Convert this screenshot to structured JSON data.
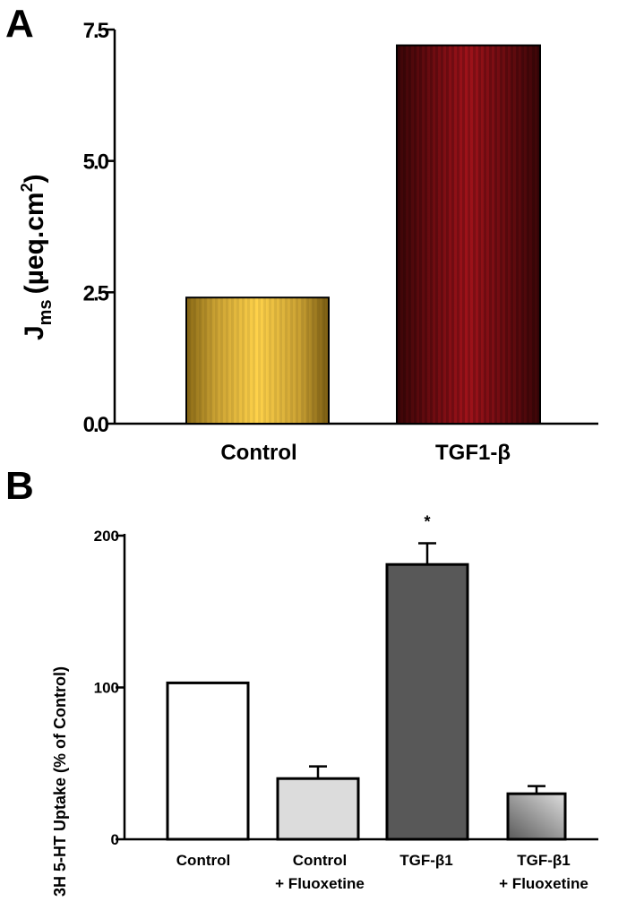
{
  "chart_data": [
    {
      "panel": "A",
      "type": "bar",
      "title": "",
      "xlabel": "",
      "ylabel_main": "J",
      "ylabel_sub": "ms",
      "ylabel_unit": "(µeq.cm",
      "ylabel_sup": "2",
      "ylabel_close": ")",
      "ylim": [
        0,
        7.5
      ],
      "ticks": [
        {
          "value": 0.0,
          "label": "0.0"
        },
        {
          "value": 2.5,
          "label": "2.5"
        },
        {
          "value": 5.0,
          "label": "5.0"
        },
        {
          "value": 7.5,
          "label": "7.5"
        }
      ],
      "categories": [
        "Control",
        "TGF1-β"
      ],
      "values": [
        2.4,
        7.2
      ],
      "colors": [
        "#f0c040",
        "#8a0f14"
      ]
    },
    {
      "panel": "B",
      "type": "bar",
      "title": "",
      "xlabel": "",
      "ylabel": "3H 5-HT Uptake (% of Control)",
      "ylim": [
        0,
        200
      ],
      "ticks": [
        {
          "value": 0,
          "label": "0"
        },
        {
          "value": 100,
          "label": "100"
        },
        {
          "value": 200,
          "label": "200"
        }
      ],
      "categories": [
        {
          "line1": "Control",
          "line2": ""
        },
        {
          "line1": "Control",
          "line2": "+ Fluoxetine"
        },
        {
          "line1": "TGF-β1",
          "line2": ""
        },
        {
          "line1": "TGF-β1",
          "line2": "+ Fluoxetine"
        }
      ],
      "values": [
        103,
        40,
        181,
        30
      ],
      "errors": [
        0,
        8,
        14,
        5
      ],
      "fills": [
        "#ffffff",
        "#dcdcdc",
        "#585858",
        "gradient"
      ],
      "significance": [
        {
          "index": 2,
          "label": "*"
        }
      ]
    }
  ]
}
